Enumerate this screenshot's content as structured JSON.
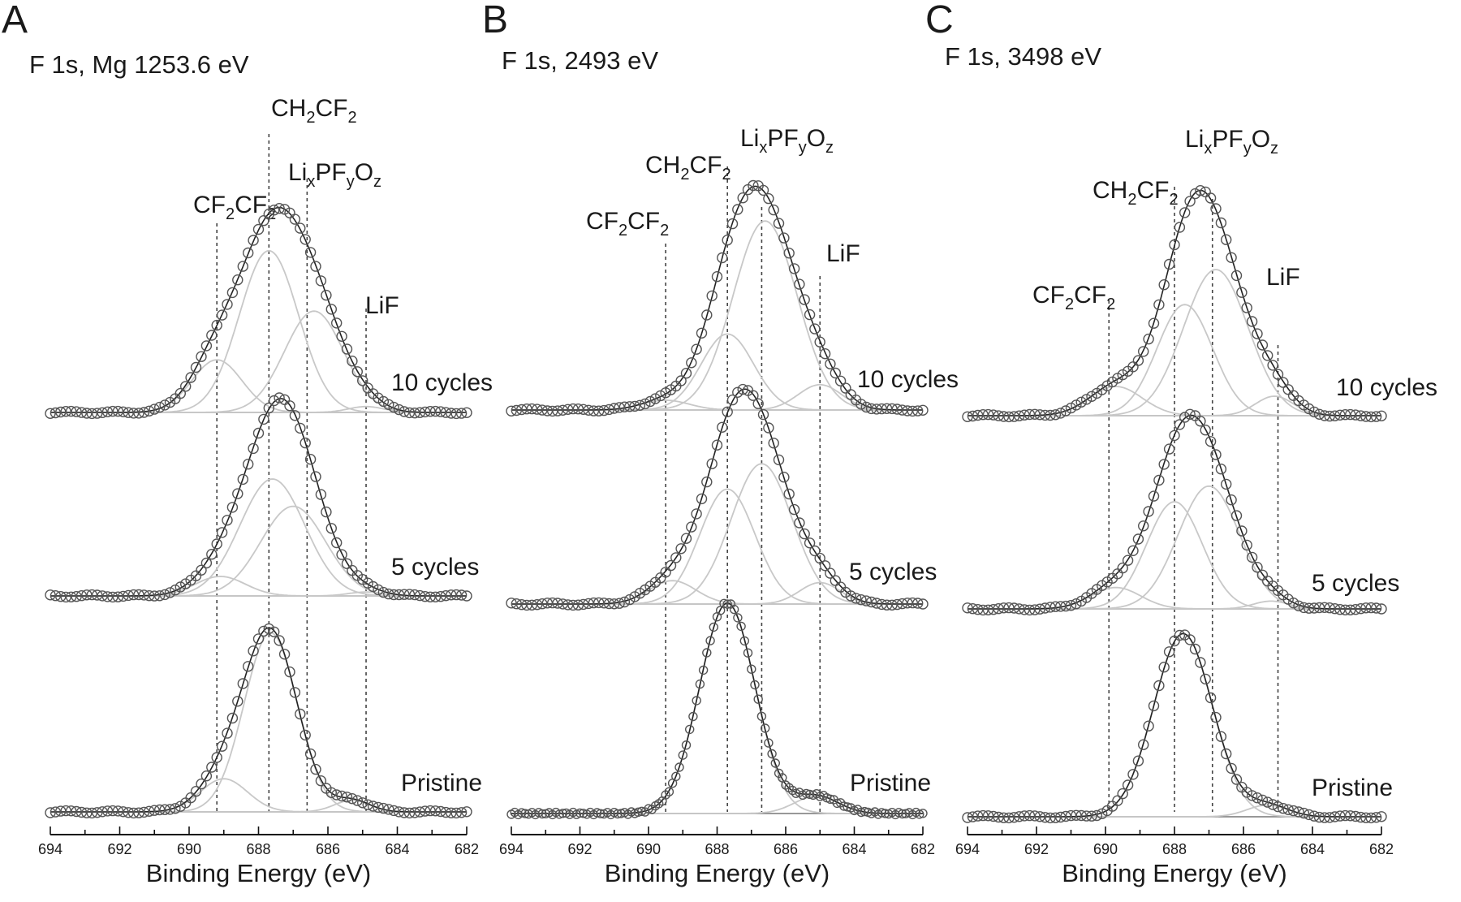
{
  "chart_data": [
    {
      "type": "line",
      "panel": "A",
      "title": "F 1s, Mg 1253.6 eV",
      "xlabel": "Binding Energy (eV)",
      "ylabel": "",
      "xlim": [
        694,
        682
      ],
      "x_reversed": true,
      "x_ticks": [
        "694",
        "692",
        "690",
        "688",
        "686",
        "684",
        "682"
      ],
      "species_lines": [
        {
          "label": {
            "base": "CF",
            "sub1": "2",
            "mid": "CF",
            "sub2": "2"
          },
          "energy": 689.2
        },
        {
          "label": {
            "base": "CH",
            "sub1": "2",
            "mid": "CF",
            "sub2": "2"
          },
          "energy": 687.7
        },
        {
          "label": {
            "parts": [
              "Li",
              "x",
              "PF",
              "y",
              "O",
              "z"
            ]
          },
          "energy": 686.6
        },
        {
          "label": {
            "text": "LiF"
          },
          "energy": 684.9
        }
      ],
      "spectra": [
        {
          "name": "10 cycles",
          "components": [
            {
              "center": 689.2,
              "fwhm": 1.7,
              "height": 0.27
            },
            {
              "center": 687.7,
              "fwhm": 2.0,
              "height": 0.83
            },
            {
              "center": 686.4,
              "fwhm": 2.0,
              "height": 0.52
            },
            {
              "center": 684.9,
              "fwhm": 1.2,
              "height": 0.03
            }
          ]
        },
        {
          "name": "5 cycles",
          "components": [
            {
              "center": 689.1,
              "fwhm": 1.7,
              "height": 0.1
            },
            {
              "center": 687.6,
              "fwhm": 2.2,
              "height": 0.6
            },
            {
              "center": 687.0,
              "fwhm": 2.2,
              "height": 0.46
            },
            {
              "center": 684.9,
              "fwhm": 1.2,
              "height": 0.02
            }
          ]
        },
        {
          "name": "Pristine",
          "components": [
            {
              "center": 689.0,
              "fwhm": 1.6,
              "height": 0.17
            },
            {
              "center": 687.65,
              "fwhm": 1.8,
              "height": 0.92
            },
            {
              "center": 685.3,
              "fwhm": 1.2,
              "height": 0.06
            }
          ]
        }
      ]
    },
    {
      "type": "line",
      "panel": "B",
      "title": "F 1s, 2493 eV",
      "xlabel": "Binding Energy (eV)",
      "ylabel": "",
      "xlim": [
        694,
        682
      ],
      "x_reversed": true,
      "x_ticks": [
        "694",
        "692",
        "690",
        "688",
        "686",
        "684",
        "682"
      ],
      "species_lines": [
        {
          "label": {
            "base": "CF",
            "sub1": "2",
            "mid": "CF",
            "sub2": "2"
          },
          "energy": 689.5
        },
        {
          "label": {
            "base": "CH",
            "sub1": "2",
            "mid": "CF",
            "sub2": "2"
          },
          "energy": 687.7
        },
        {
          "label": {
            "parts": [
              "Li",
              "x",
              "PF",
              "y",
              "O",
              "z"
            ]
          },
          "energy": 686.7
        },
        {
          "label": {
            "text": "LiF"
          },
          "energy": 685.0
        }
      ],
      "spectra": [
        {
          "name": "10 cycles",
          "components": [
            {
              "center": 689.5,
              "fwhm": 1.6,
              "height": 0.05
            },
            {
              "center": 687.7,
              "fwhm": 1.8,
              "height": 0.39
            },
            {
              "center": 686.6,
              "fwhm": 2.2,
              "height": 0.97
            },
            {
              "center": 685.0,
              "fwhm": 1.5,
              "height": 0.13
            }
          ]
        },
        {
          "name": "5 cycles",
          "components": [
            {
              "center": 689.3,
              "fwhm": 1.6,
              "height": 0.12
            },
            {
              "center": 687.7,
              "fwhm": 1.9,
              "height": 0.59
            },
            {
              "center": 686.7,
              "fwhm": 2.1,
              "height": 0.72
            },
            {
              "center": 685.0,
              "fwhm": 1.4,
              "height": 0.11
            }
          ]
        },
        {
          "name": "Pristine",
          "components": [
            {
              "center": 687.7,
              "fwhm": 1.9,
              "height": 1.08
            },
            {
              "center": 685.1,
              "fwhm": 1.5,
              "height": 0.09
            }
          ]
        }
      ]
    },
    {
      "type": "line",
      "panel": "C",
      "title": "F 1s, 3498 eV",
      "xlabel": "Binding Energy (eV)",
      "ylabel": "",
      "xlim": [
        694,
        682
      ],
      "x_reversed": true,
      "x_ticks": [
        "694",
        "692",
        "690",
        "688",
        "686",
        "684",
        "682"
      ],
      "species_lines": [
        {
          "label": {
            "base": "CF",
            "sub1": "2",
            "mid": "CF",
            "sub2": "2"
          },
          "energy": 689.9
        },
        {
          "label": {
            "base": "CH",
            "sub1": "2",
            "mid": "CF",
            "sub2": "2"
          },
          "energy": 688.0
        },
        {
          "label": {
            "parts": [
              "Li",
              "x",
              "PF",
              "y",
              "O",
              "z"
            ]
          },
          "energy": 686.9
        },
        {
          "label": {
            "text": "LiF"
          },
          "energy": 685.0
        }
      ],
      "spectra": [
        {
          "name": "10 cycles",
          "components": [
            {
              "center": 689.7,
              "fwhm": 1.8,
              "height": 0.15
            },
            {
              "center": 687.7,
              "fwhm": 1.9,
              "height": 0.57
            },
            {
              "center": 686.8,
              "fwhm": 2.2,
              "height": 0.75
            },
            {
              "center": 685.1,
              "fwhm": 1.3,
              "height": 0.1
            }
          ]
        },
        {
          "name": "5 cycles",
          "components": [
            {
              "center": 689.7,
              "fwhm": 1.7,
              "height": 0.11
            },
            {
              "center": 688.0,
              "fwhm": 1.9,
              "height": 0.55
            },
            {
              "center": 687.0,
              "fwhm": 2.1,
              "height": 0.63
            },
            {
              "center": 685.2,
              "fwhm": 1.2,
              "height": 0.04
            }
          ]
        },
        {
          "name": "Pristine",
          "components": [
            {
              "center": 687.75,
              "fwhm": 2.0,
              "height": 0.94
            },
            {
              "center": 685.3,
              "fwhm": 1.4,
              "height": 0.06
            }
          ]
        }
      ]
    }
  ]
}
